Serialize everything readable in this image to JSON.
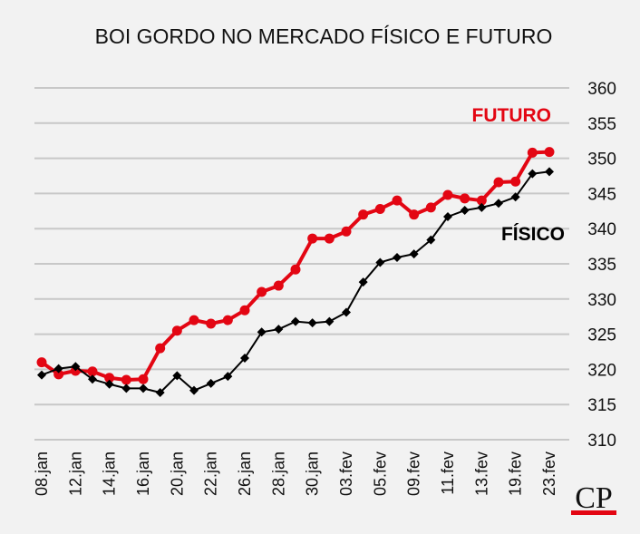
{
  "chart_data": {
    "type": "line",
    "title": "BOI GORDO NO MERCADO FÍSICO E FUTURO",
    "xlabel": "",
    "ylabel": "",
    "ylim": [
      310,
      360
    ],
    "yticks": [
      360,
      355,
      350,
      345,
      340,
      335,
      330,
      325,
      320,
      315,
      310
    ],
    "grid": true,
    "y_axis_side": "right",
    "x_tick_labels": [
      "08.jan",
      "12.jan",
      "14.jan",
      "16.jan",
      "20.jan",
      "22.jan",
      "26.jan",
      "28.jan",
      "30.jan",
      "03.fev",
      "05.fev",
      "09.fev",
      "11.fev",
      "13.fev",
      "19.fev",
      "23.fev"
    ],
    "series": [
      {
        "name": "FUTURO",
        "color": "#e30613",
        "marker": "circle",
        "values": [
          321.0,
          319.3,
          319.8,
          319.7,
          318.8,
          318.5,
          318.6,
          323.0,
          325.5,
          327.0,
          326.5,
          327.0,
          328.4,
          331.0,
          331.9,
          334.2,
          338.6,
          338.6,
          339.6,
          342.0,
          342.8,
          344.0,
          342.0,
          343.0,
          344.8,
          344.3,
          344.0,
          346.6,
          346.7,
          350.8,
          350.9
        ]
      },
      {
        "name": "FÍSICO",
        "color": "#000000",
        "marker": "diamond",
        "values": [
          319.2,
          320.1,
          320.4,
          318.6,
          317.9,
          317.3,
          317.3,
          316.7,
          319.1,
          317.0,
          318.0,
          319.0,
          321.6,
          325.3,
          325.7,
          326.8,
          326.6,
          326.8,
          328.1,
          332.4,
          335.2,
          335.9,
          336.4,
          338.4,
          341.7,
          342.6,
          343.0,
          343.6,
          344.5,
          347.8,
          348.1
        ]
      }
    ]
  },
  "logo": {
    "text": "CP"
  }
}
